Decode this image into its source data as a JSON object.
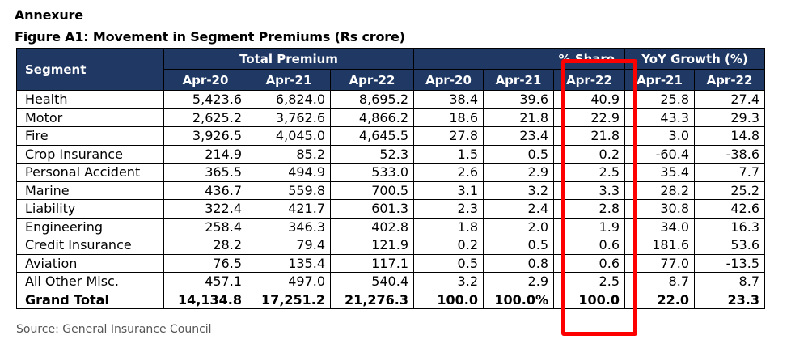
{
  "annexure_title": "Annexure",
  "figure_title": "Figure A1: Movement in Segment Premiums (Rs crore)",
  "header": {
    "segment": "Segment",
    "groups": [
      "Total Premium",
      "% Share",
      "YoY Growth (%)"
    ],
    "subheaders": [
      "Apr-20",
      "Apr-21",
      "Apr-22",
      "Apr-20",
      "Apr-21",
      "Apr-22",
      "Apr-21",
      "Apr-22"
    ]
  },
  "rows": [
    [
      "Health",
      "5,423.6",
      "6,824.0",
      "8,695.2",
      "38.4",
      "39.6",
      "40.9",
      "25.8",
      "27.4"
    ],
    [
      "Motor",
      "2,625.2",
      "3,762.6",
      "4,866.2",
      "18.6",
      "21.8",
      "22.9",
      "43.3",
      "29.3"
    ],
    [
      "Fire",
      "3,926.5",
      "4,045.0",
      "4,645.5",
      "27.8",
      "23.4",
      "21.8",
      "3.0",
      "14.8"
    ],
    [
      "Crop Insurance",
      "214.9",
      "85.2",
      "52.3",
      "1.5",
      "0.5",
      "0.2",
      "-60.4",
      "-38.6"
    ],
    [
      "Personal Accident",
      "365.5",
      "494.9",
      "533.0",
      "2.6",
      "2.9",
      "2.5",
      "35.4",
      "7.7"
    ],
    [
      "Marine",
      "436.7",
      "559.8",
      "700.5",
      "3.1",
      "3.2",
      "3.3",
      "28.2",
      "25.2"
    ],
    [
      "Liability",
      "322.4",
      "421.7",
      "601.3",
      "2.3",
      "2.4",
      "2.8",
      "30.8",
      "42.6"
    ],
    [
      "Engineering",
      "258.4",
      "346.3",
      "402.8",
      "1.8",
      "2.0",
      "1.9",
      "34.0",
      "16.3"
    ],
    [
      "Credit Insurance",
      "28.2",
      "79.4",
      "121.9",
      "0.2",
      "0.5",
      "0.6",
      "181.6",
      "53.6"
    ],
    [
      "Aviation",
      "76.5",
      "135.4",
      "117.1",
      "0.5",
      "0.8",
      "0.6",
      "77.0",
      "-13.5"
    ],
    [
      "All Other Misc.",
      "457.1",
      "497.0",
      "540.4",
      "3.2",
      "2.9",
      "2.5",
      "8.7",
      "8.7"
    ]
  ],
  "total": [
    "Grand Total",
    "14,134.8",
    "17,251.2",
    "21,276.3",
    "100.0",
    "100.0%",
    "100.0",
    "22.0",
    "23.3"
  ],
  "source": "Source:  General Insurance Council",
  "colors": {
    "header_bg": "#1f3864",
    "highlight": "#ff0000"
  }
}
